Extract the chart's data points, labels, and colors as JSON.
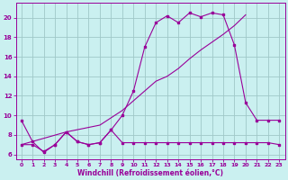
{
  "xlabel": "Windchill (Refroidissement éolien,°C)",
  "xlim": [
    -0.5,
    23.5
  ],
  "ylim": [
    5.5,
    21.5
  ],
  "yticks": [
    6,
    8,
    10,
    12,
    14,
    16,
    18,
    20
  ],
  "xticks": [
    0,
    1,
    2,
    3,
    4,
    5,
    6,
    7,
    8,
    9,
    10,
    11,
    12,
    13,
    14,
    15,
    16,
    17,
    18,
    19,
    20,
    21,
    22,
    23
  ],
  "bg_color": "#caf0f0",
  "grid_color": "#a0c8c8",
  "line_color": "#990099",
  "line1_x": [
    0,
    1,
    2,
    3,
    4,
    5,
    6,
    7,
    8,
    9,
    10,
    11,
    12,
    13,
    14,
    15,
    16,
    17,
    18,
    19,
    20,
    21,
    22,
    23
  ],
  "line1_y": [
    9.5,
    7.3,
    6.2,
    7.0,
    8.3,
    7.3,
    7.0,
    7.2,
    8.5,
    10.0,
    12.5,
    17.0,
    19.5,
    20.2,
    19.5,
    20.5,
    20.1,
    20.5,
    20.3,
    17.2,
    11.3,
    9.5,
    9.5,
    9.5
  ],
  "line2_x": [
    0,
    1,
    2,
    3,
    4,
    5,
    6,
    7,
    8,
    9,
    10,
    11,
    12,
    13,
    14,
    15,
    16,
    17,
    18,
    19,
    20,
    21,
    22,
    23
  ],
  "line2_y": [
    7.0,
    7.0,
    6.3,
    7.0,
    8.3,
    7.3,
    7.0,
    7.2,
    8.5,
    7.2,
    7.2,
    7.2,
    7.2,
    7.2,
    7.2,
    7.2,
    7.2,
    7.2,
    7.2,
    7.2,
    7.2,
    7.2,
    7.2,
    7.0
  ],
  "line3_x": [
    0,
    4,
    7,
    9,
    10,
    11,
    12,
    13,
    14,
    15,
    16,
    17,
    18,
    19,
    20
  ],
  "line3_y": [
    7.0,
    8.3,
    9.0,
    10.5,
    11.5,
    12.5,
    13.5,
    14.0,
    14.8,
    15.8,
    16.7,
    17.5,
    18.3,
    19.2,
    20.3
  ]
}
